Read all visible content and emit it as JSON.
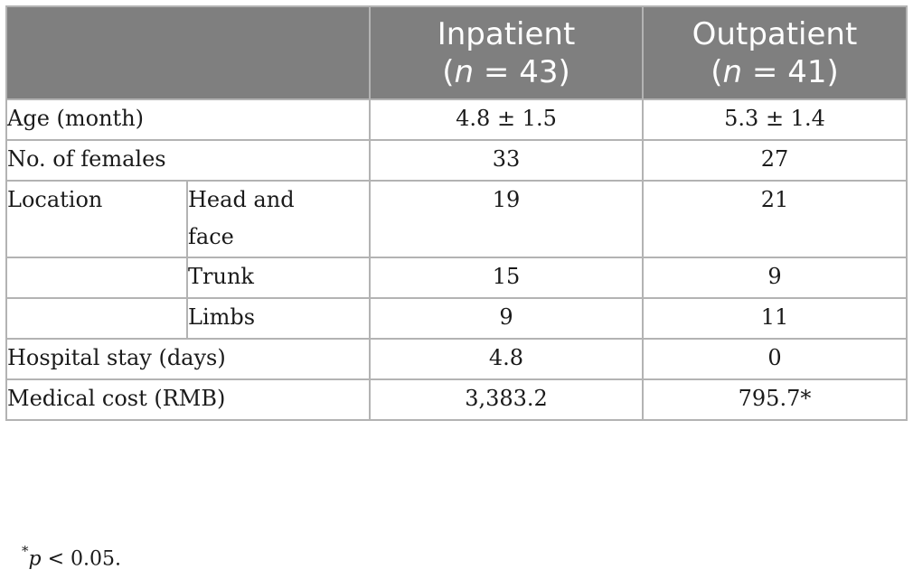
{
  "table": {
    "headers": [
      {
        "label": "Inpatient",
        "n_prefix": "(",
        "n_var": "n",
        "n_rest": " = 43)"
      },
      {
        "label": "Outpatient",
        "n_prefix": "(",
        "n_var": "n",
        "n_rest": " = 41)"
      }
    ],
    "rows": {
      "age": {
        "label": "Age (month)",
        "inpatient": "4.8 ± 1.5",
        "outpatient": "5.3 ± 1.4"
      },
      "females": {
        "label": "No. of females",
        "inpatient": "33",
        "outpatient": "27"
      },
      "location": {
        "label": "Location",
        "head": {
          "label_line1": "Head and",
          "label_line2": "face",
          "inpatient": "19",
          "outpatient": "21"
        },
        "trunk": {
          "label": "Trunk",
          "inpatient": "15",
          "outpatient": "9"
        },
        "limbs": {
          "label": "Limbs",
          "inpatient": "9",
          "outpatient": "11"
        }
      },
      "stay": {
        "label": "Hospital stay (days)",
        "inpatient": "4.8",
        "outpatient": "0"
      },
      "cost": {
        "label": "Medical cost (RMB)",
        "inpatient": "3,383.2",
        "outpatient": "795.7*"
      }
    }
  },
  "footnote": {
    "marker": "*",
    "var": "p",
    "rest": " < 0.05."
  }
}
